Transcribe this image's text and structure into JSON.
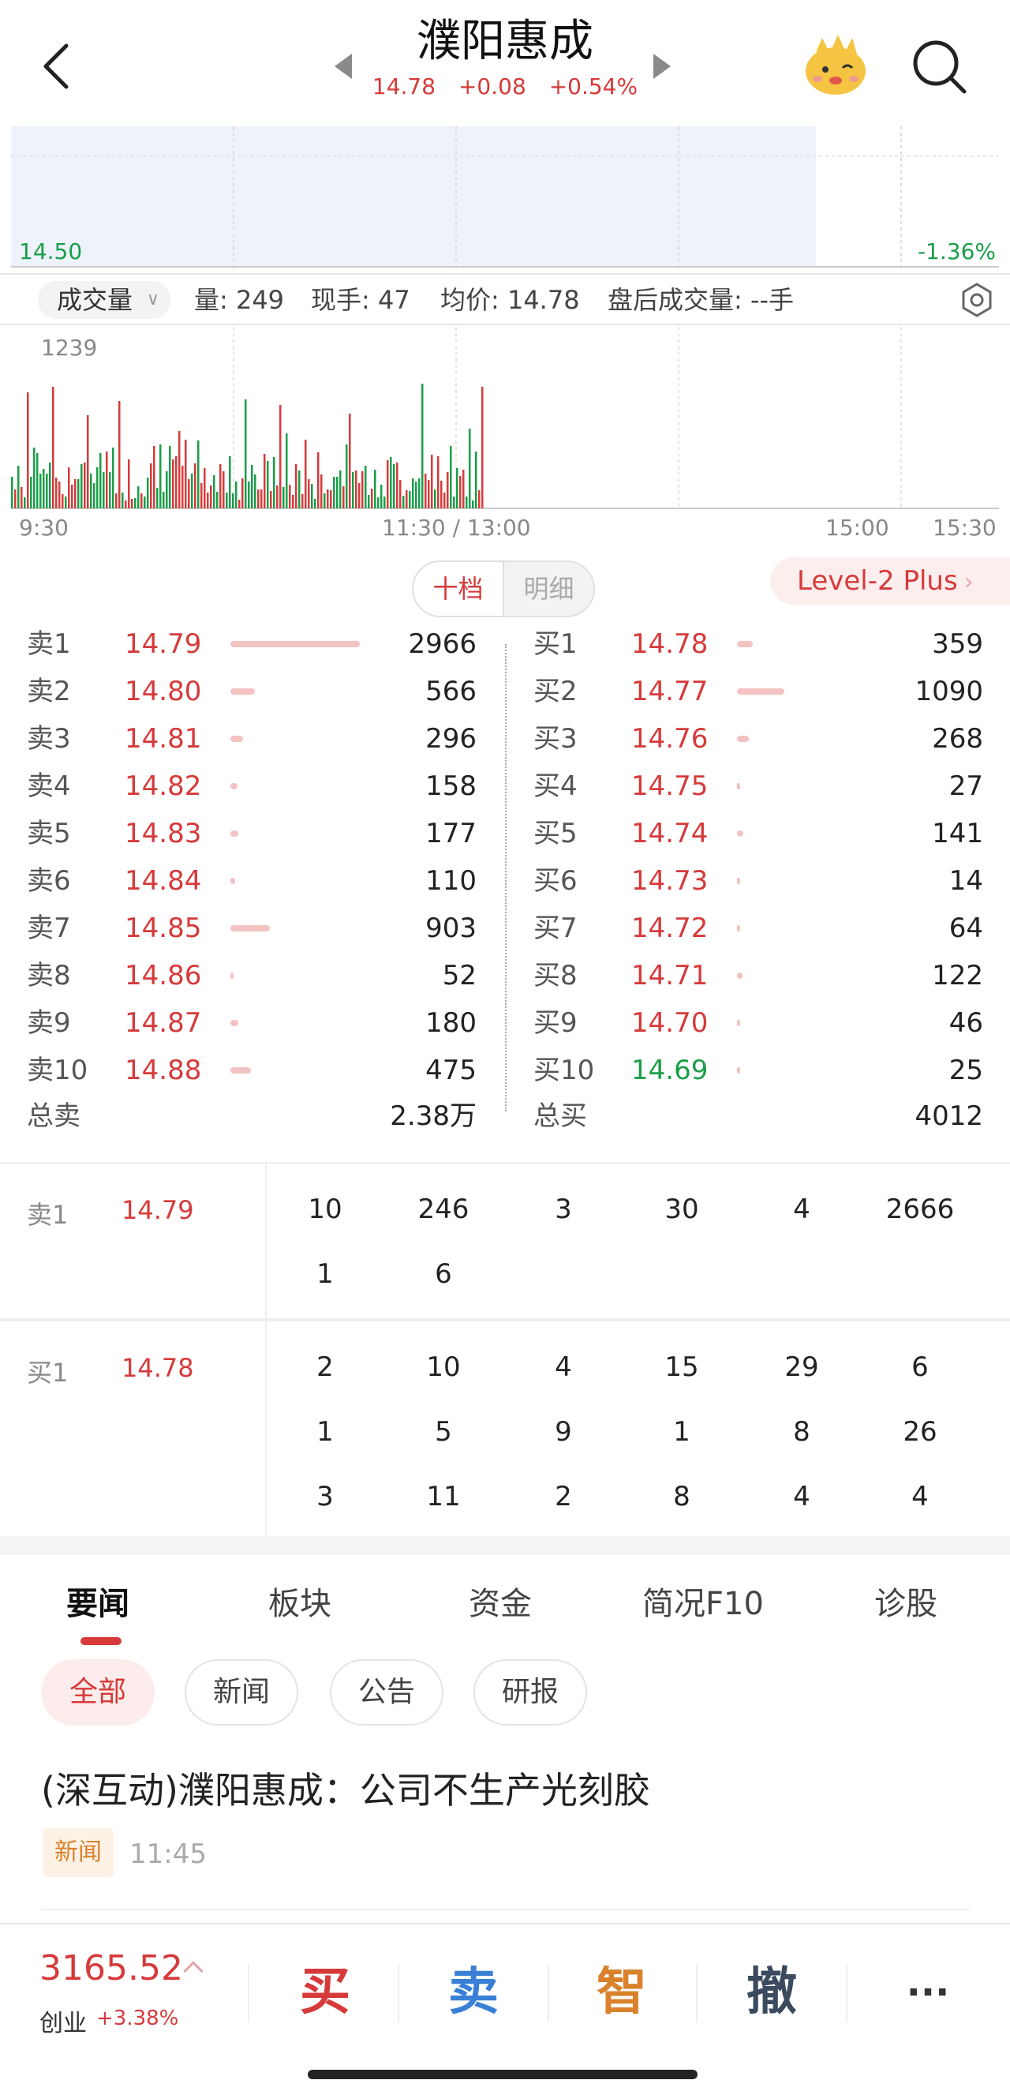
{
  "header": {
    "title": "濮阳惠成",
    "price": "14.78",
    "change": "+0.08",
    "change_pct": "+0.54%"
  },
  "price_chart": {
    "low_price": "14.50",
    "low_pct": "-1.36%"
  },
  "volume_stats": {
    "selector": "成交量",
    "volume": "量: 249",
    "current_hand": "现手: 47",
    "avg_price": "均价: 14.78",
    "after_hours": "盘后成交量: --手"
  },
  "volume_chart": {
    "max_label": "1239",
    "time_labels": [
      "9:30",
      "11:30 / 13:00",
      "15:00",
      "15:30"
    ]
  },
  "order_book": {
    "toggle": [
      "十档",
      "明细"
    ],
    "level2": "Level-2 Plus",
    "asks": [
      {
        "label": "卖1",
        "price": "14.79",
        "vol": "2966",
        "vol_n": 2966
      },
      {
        "label": "卖2",
        "price": "14.80",
        "vol": "566",
        "vol_n": 566
      },
      {
        "label": "卖3",
        "price": "14.81",
        "vol": "296",
        "vol_n": 296
      },
      {
        "label": "卖4",
        "price": "14.82",
        "vol": "158",
        "vol_n": 158
      },
      {
        "label": "卖5",
        "price": "14.83",
        "vol": "177",
        "vol_n": 177
      },
      {
        "label": "卖6",
        "price": "14.84",
        "vol": "110",
        "vol_n": 110
      },
      {
        "label": "卖7",
        "price": "14.85",
        "vol": "903",
        "vol_n": 903
      },
      {
        "label": "卖8",
        "price": "14.86",
        "vol": "52",
        "vol_n": 52
      },
      {
        "label": "卖9",
        "price": "14.87",
        "vol": "180",
        "vol_n": 180
      },
      {
        "label": "卖10",
        "price": "14.88",
        "vol": "475",
        "vol_n": 475
      }
    ],
    "bids": [
      {
        "label": "买1",
        "price": "14.78",
        "vol": "359",
        "vol_n": 359
      },
      {
        "label": "买2",
        "price": "14.77",
        "vol": "1090",
        "vol_n": 1090
      },
      {
        "label": "买3",
        "price": "14.76",
        "vol": "268",
        "vol_n": 268
      },
      {
        "label": "买4",
        "price": "14.75",
        "vol": "27",
        "vol_n": 27
      },
      {
        "label": "买5",
        "price": "14.74",
        "vol": "141",
        "vol_n": 141
      },
      {
        "label": "买6",
        "price": "14.73",
        "vol": "14",
        "vol_n": 14
      },
      {
        "label": "买7",
        "price": "14.72",
        "vol": "64",
        "vol_n": 64
      },
      {
        "label": "买8",
        "price": "14.71",
        "vol": "122",
        "vol_n": 122
      },
      {
        "label": "买9",
        "price": "14.70",
        "vol": "46",
        "vol_n": 46
      },
      {
        "label": "买10",
        "price": "14.69",
        "vol": "25",
        "vol_n": 25,
        "color": "green"
      }
    ],
    "total_sell_label": "总卖",
    "total_sell": "2.38万",
    "total_buy_label": "总买",
    "total_buy": "4012"
  },
  "queue": {
    "sell": {
      "label": "卖1",
      "price": "14.79",
      "orders": [
        "10",
        "246",
        "3",
        "30",
        "4",
        "2666",
        "1",
        "6"
      ]
    },
    "buy": {
      "label": "买1",
      "price": "14.78",
      "orders": [
        "2",
        "10",
        "4",
        "15",
        "29",
        "6",
        "1",
        "5",
        "9",
        "1",
        "8",
        "26",
        "3",
        "11",
        "2",
        "8",
        "4",
        "4"
      ]
    }
  },
  "news_tabs": [
    "要闻",
    "板块",
    "资金",
    "简况F10",
    "诊股"
  ],
  "news_filters": [
    "全部",
    "新闻",
    "公告",
    "研报"
  ],
  "news": {
    "title": "(深互动)濮阳惠成：公司不生产光刻胶",
    "tag": "新闻",
    "time": "11:45"
  },
  "bottom_bar": {
    "index_value": "3165.52",
    "index_name": "创业",
    "index_change": "+3.38%",
    "buttons": [
      "买",
      "卖",
      "智",
      "撤",
      "···"
    ]
  },
  "colors": {
    "up": "#d63a3a",
    "down": "#1a9e48",
    "sell_blue": "#3a7fd6",
    "smart_orange": "#d9822b",
    "cancel_dark": "#3b4a5e"
  }
}
